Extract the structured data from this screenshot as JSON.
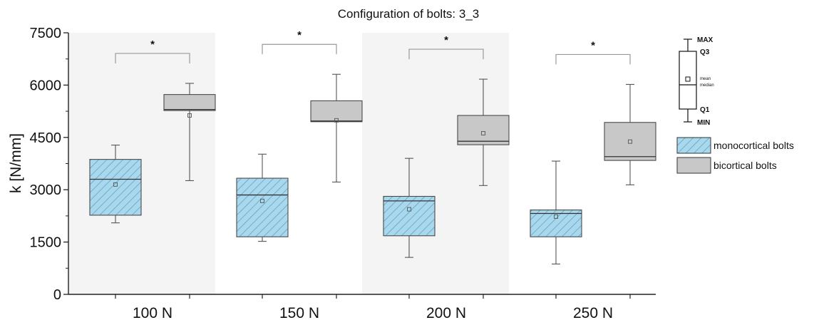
{
  "chart_data": {
    "type": "box",
    "title": "Configuration of bolts: 3_3",
    "xlabel": "",
    "ylabel": "k [N/mm]",
    "ylim": [
      0,
      7500
    ],
    "yticks": [
      0,
      1500,
      3000,
      4500,
      6000,
      7500
    ],
    "categories": [
      "100 N",
      "150 N",
      "200 N",
      "250 N"
    ],
    "series": [
      {
        "name": "monocortical bolts",
        "color": "#a8d8ee",
        "hatch": true,
        "boxes": [
          {
            "min": 2050,
            "q1": 2270,
            "median": 3300,
            "mean": 3150,
            "q3": 3870,
            "max": 4280
          },
          {
            "min": 1520,
            "q1": 1650,
            "median": 2850,
            "mean": 2680,
            "q3": 3330,
            "max": 4020
          },
          {
            "min": 1060,
            "q1": 1680,
            "median": 2680,
            "mean": 2440,
            "q3": 2810,
            "max": 3900
          },
          {
            "min": 870,
            "q1": 1650,
            "median": 2320,
            "mean": 2230,
            "q3": 2420,
            "max": 3820
          }
        ]
      },
      {
        "name": "bicortical bolts",
        "color": "#c8c8c8",
        "hatch": false,
        "boxes": [
          {
            "min": 3260,
            "q1": 5270,
            "median": 5300,
            "mean": 5130,
            "q3": 5730,
            "max": 6050
          },
          {
            "min": 3220,
            "q1": 4950,
            "median": 4970,
            "mean": 4990,
            "q3": 5550,
            "max": 6310
          },
          {
            "min": 3120,
            "q1": 4290,
            "median": 4390,
            "mean": 4620,
            "q3": 5130,
            "max": 6170
          },
          {
            "min": 3140,
            "q1": 3840,
            "median": 3950,
            "mean": 4380,
            "q3": 4930,
            "max": 6020
          }
        ]
      }
    ],
    "significance_marker": "*",
    "shaded_groups": [
      "100 N",
      "200 N"
    ],
    "grid": false,
    "legend_position": "right",
    "legend_key": {
      "max": "MAX",
      "q3": "Q3",
      "mean": "mean",
      "median": "median",
      "q1": "Q1",
      "min": "MIN"
    }
  }
}
